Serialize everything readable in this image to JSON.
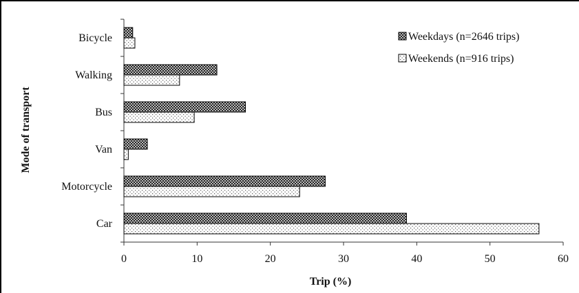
{
  "chart_data": {
    "type": "bar",
    "orientation": "horizontal",
    "xlabel": "Trip  (%)",
    "ylabel": "Mode of transport",
    "xlim": [
      0,
      60
    ],
    "xticks": [
      0,
      10,
      20,
      30,
      40,
      50,
      60
    ],
    "categories": [
      "Bicycle",
      "Walking",
      "Bus",
      "Van",
      "Motorcycle",
      "Car"
    ],
    "series": [
      {
        "name": "Weekdays (n=2646 trips)",
        "values": [
          1.2,
          12.7,
          16.6,
          3.2,
          27.5,
          38.6
        ],
        "pattern": "dark-checker"
      },
      {
        "name": "Weekends (n=916 trips)",
        "values": [
          1.5,
          7.6,
          9.6,
          0.6,
          24.0,
          56.7
        ],
        "pattern": "light-dots"
      }
    ],
    "legend_position": "top-right",
    "grid": false
  }
}
